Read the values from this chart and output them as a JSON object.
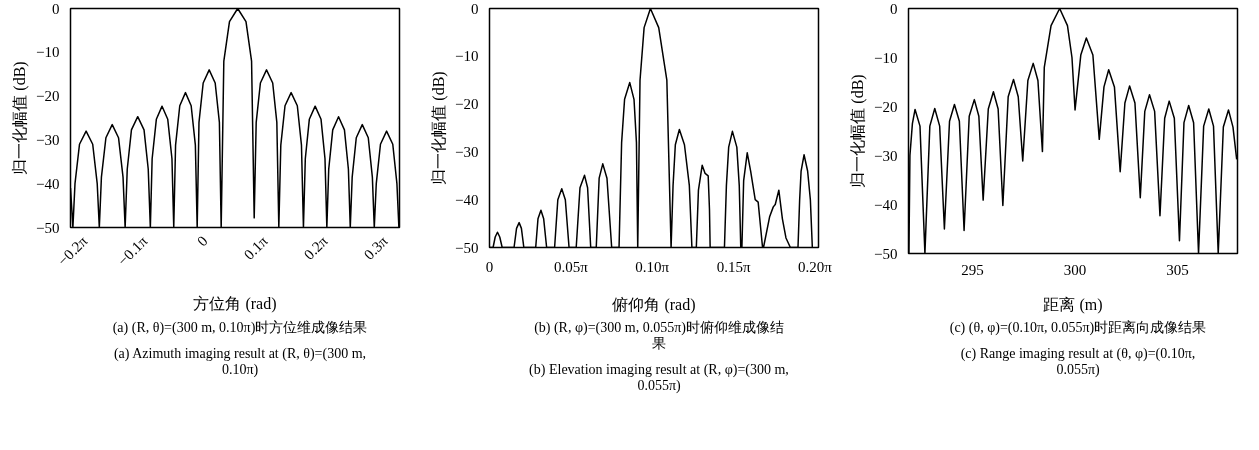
{
  "chart_data": [
    {
      "type": "line",
      "xlabel": "方位角 (rad)",
      "ylabel": "归一化幅值 (dB)",
      "color": "#000000",
      "x": [
        -0.7037,
        -0.6912,
        -0.6802,
        -0.6566,
        -0.622,
        -0.5875,
        -0.5639,
        -0.5529,
        -0.5419,
        -0.5184,
        -0.4854,
        -0.4524,
        -0.4288,
        -0.4178,
        -0.4068,
        -0.3848,
        -0.3519,
        -0.3189,
        -0.2969,
        -0.2859,
        -0.2765,
        -0.2545,
        -0.2246,
        -0.1948,
        -0.1728,
        -0.1634,
        -0.1539,
        -0.1319,
        -0.1021,
        -0.0723,
        -0.0503,
        -0.0408,
        -0.0314,
        -0.0094,
        0.022,
        0.0534,
        0.0754,
        0.0848,
        0.0986,
        0.1282,
        0.1712,
        0.2146,
        0.2438,
        0.2576,
        0.268,
        0.29,
        0.322,
        0.3544,
        0.376,
        0.3864,
        0.3968,
        0.4188,
        0.4508,
        0.4832,
        0.5049,
        0.5152,
        0.525,
        0.546,
        0.5765,
        0.6073,
        0.628,
        0.6377,
        0.6475,
        0.6685,
        0.699,
        0.7298,
        0.7505,
        0.7603,
        0.7703,
        0.7917,
        0.8231,
        0.8545,
        0.8759,
        0.8859,
        0.8963,
        0.9183,
        0.9503,
        0.9827,
        1.0044,
        1.0147
      ],
      "values": [
        -41,
        -50,
        -40,
        -31,
        -28,
        -31,
        -40,
        -50,
        -38.5,
        -29.5,
        -26.5,
        -29.5,
        -38.5,
        -50,
        -36.7,
        -27.7,
        -24.7,
        -27.7,
        -36.7,
        -50,
        -34.3,
        -25.3,
        -22.3,
        -25.3,
        -34.3,
        -50,
        -31.2,
        -22.2,
        -19.2,
        -22.2,
        -31.2,
        -50,
        -26,
        -17,
        -14,
        -17,
        -26,
        -50,
        -12,
        -3,
        0,
        -3,
        -12,
        -47.8,
        -26,
        -17,
        -14,
        -17,
        -26,
        -50,
        -31.2,
        -22.2,
        -19.2,
        -22.2,
        -31.2,
        -50,
        -34.3,
        -25.3,
        -22.3,
        -25.3,
        -34.3,
        -50,
        -36.7,
        -27.7,
        -24.7,
        -27.7,
        -36.7,
        -50,
        -38.5,
        -29.5,
        -26.5,
        -29.5,
        -38.5,
        -50,
        -40,
        -31,
        -28,
        -31,
        -40,
        -50
      ],
      "xlim": [
        -0.7037,
        1.0179
      ],
      "xticks": [
        {
          "value": -0.6283,
          "label": "−0.2π"
        },
        {
          "value": -0.3142,
          "label": "−0.1π"
        },
        0,
        {
          "value": 0.3142,
          "label": "0.1π"
        },
        {
          "value": 0.6283,
          "label": "0.2π"
        },
        {
          "value": 0.9425,
          "label": "0.3π"
        }
      ],
      "ylim": [
        -50,
        0
      ],
      "yticks": [
        0,
        {
          "value": -10,
          "label": "−10"
        },
        {
          "value": -20,
          "label": "−20"
        },
        {
          "value": -30,
          "label": "−30"
        },
        {
          "value": -40,
          "label": "−40"
        },
        {
          "value": -50,
          "label": "−50"
        }
      ],
      "annotations": [
        "(a) (R, θ)=(300 m, 0.10π)时方位维成像结果",
        "(a) Azimuth imaging result at (R, θ)=(300 m, 0.10π)"
      ]
    },
    {
      "type": "line",
      "xlabel": "俯仰角 (rad)",
      "ylabel": "归一化幅值 (dB)",
      "color": "#000000",
      "x": [
        0,
        0.0069,
        0.011,
        0.0154,
        0.0198,
        0.0245,
        0.0474,
        0.0522,
        0.0572,
        0.0616,
        0.0663,
        0.0892,
        0.0936,
        0.0993,
        0.1046,
        0.1103,
        0.1257,
        0.1319,
        0.1395,
        0.1464,
        0.1536,
        0.1674,
        0.1747,
        0.1835,
        0.1894,
        0.1954,
        0.2061,
        0.2117,
        0.2187,
        0.2268,
        0.2359,
        0.2501,
        0.2551,
        0.2608,
        0.2708,
        0.279,
        0.2837,
        0.2862,
        0.2906,
        0.2985,
        0.3107,
        0.3267,
        0.3424,
        0.3506,
        0.3544,
        0.3588,
        0.3666,
        0.3764,
        0.3858,
        0.3908,
        0.3993,
        0.4034,
        0.4106,
        0.4163,
        0.4222,
        0.4247,
        0.426,
        0.4536,
        0.4574,
        0.4618,
        0.469,
        0.4775,
        0.4822,
        0.4851,
        0.4873,
        0.4907,
        0.4976,
        0.5042,
        0.513,
        0.5187,
        0.5272,
        0.529,
        0.541,
        0.5479,
        0.5517,
        0.5586,
        0.5655,
        0.5724,
        0.5809,
        0.5956,
        0.5988,
        0.6016,
        0.6073,
        0.6142,
        0.6195,
        0.6233
      ],
      "values": [
        -50,
        -50,
        -47.8,
        -46.8,
        -47.8,
        -50,
        -50,
        -46,
        -44.8,
        -46,
        -50,
        -50,
        -44,
        -42.2,
        -44,
        -50,
        -50,
        -40,
        -37.7,
        -40,
        -50,
        -50,
        -37.5,
        -34.9,
        -37.5,
        -50,
        -50,
        -35.5,
        -32.5,
        -35.5,
        -50,
        -50,
        -28,
        -19,
        -15.5,
        -19,
        -28,
        -50,
        -15,
        -4,
        0,
        -4,
        -15,
        -50,
        -37,
        -28.5,
        -25.3,
        -28.5,
        -37,
        -50,
        -50,
        -38,
        -32.8,
        -34.5,
        -35,
        -42,
        -50,
        -50,
        -37,
        -29,
        -25.7,
        -29,
        -37,
        -50,
        -50,
        -36,
        -30.2,
        -34,
        -40,
        -40.5,
        -50,
        -50,
        -43.5,
        -41.5,
        -41,
        -38,
        -44,
        -48,
        -50,
        -50,
        -40,
        -34,
        -30.6,
        -34,
        -40,
        -50
      ],
      "xlim": [
        0,
        0.6352
      ],
      "xticks": [
        0,
        {
          "value": 0.1571,
          "label": "0.05π"
        },
        {
          "value": 0.3142,
          "label": "0.10π"
        },
        {
          "value": 0.4712,
          "label": "0.15π"
        },
        {
          "value": 0.6283,
          "label": "0.20π"
        }
      ],
      "ylim": [
        -50,
        0
      ],
      "yticks": [
        0,
        {
          "value": -10,
          "label": "−10"
        },
        {
          "value": -20,
          "label": "−20"
        },
        {
          "value": -30,
          "label": "−30"
        },
        {
          "value": -40,
          "label": "−40"
        },
        {
          "value": -50,
          "label": "−50"
        }
      ],
      "annotations": [
        "(b) (R, φ)=(300 m, 0.055π)时俯仰维成像结果",
        "(b) Elevation imaging result at (R, φ)=(300 m, 0.055π)"
      ]
    },
    {
      "type": "line",
      "xlabel": "距离 (m)",
      "ylabel": "归一化幅值 (dB)",
      "color": "#000000",
      "x": [
        291.9,
        291.95,
        292.07,
        292.2,
        292.44,
        292.68,
        292.92,
        293.16,
        293.4,
        293.63,
        293.88,
        294.12,
        294.36,
        294.59,
        294.84,
        295.09,
        295.31,
        295.52,
        295.77,
        296.02,
        296.25,
        296.48,
        296.74,
        297.0,
        297.23,
        297.45,
        297.7,
        297.96,
        298.19,
        298.41,
        298.5,
        298.83,
        299.25,
        299.63,
        299.85,
        300.0,
        300.28,
        300.55,
        300.87,
        301.18,
        301.41,
        301.64,
        301.92,
        302.2,
        302.43,
        302.66,
        302.92,
        303.18,
        303.4,
        303.63,
        303.88,
        304.14,
        304.37,
        304.59,
        304.84,
        305.09,
        305.31,
        305.54,
        305.78,
        306.02,
        306.27,
        306.52,
        306.75,
        306.98,
        307.23,
        307.48,
        307.7,
        307.88
      ],
      "values": [
        -50,
        -30,
        -23.5,
        -20.6,
        -24,
        -50,
        -24,
        -20.4,
        -24,
        -45,
        -23,
        -19.6,
        -23,
        -45.3,
        -22,
        -18.6,
        -22,
        -39.1,
        -20.5,
        -17,
        -20.5,
        -40.2,
        -18,
        -14.5,
        -18,
        -31.1,
        -14.7,
        -11.2,
        -14.7,
        -29.2,
        -12,
        -3.5,
        0,
        -3.5,
        -10,
        -20.7,
        -9.5,
        -6,
        -9.5,
        -26.7,
        -16,
        -12.5,
        -16,
        -33.3,
        -19.3,
        -15.8,
        -19.3,
        -38.6,
        -21,
        -17.6,
        -21,
        -42.3,
        -22.4,
        -18.9,
        -22.4,
        -47.4,
        -23.3,
        -19.8,
        -23.3,
        -50,
        -24,
        -20.5,
        -24,
        -50,
        -24.2,
        -20.7,
        -24.2,
        -30.8
      ],
      "xlim": [
        291.88,
        307.92
      ],
      "xticks": [
        295,
        300,
        305
      ],
      "ylim": [
        -50,
        0
      ],
      "yticks": [
        0,
        {
          "value": -10,
          "label": "−10"
        },
        {
          "value": -20,
          "label": "−20"
        },
        {
          "value": -30,
          "label": "−30"
        },
        {
          "value": -40,
          "label": "−40"
        },
        {
          "value": -50,
          "label": "−50"
        }
      ],
      "annotations": [
        "(c) (θ, φ)=(0.10π, 0.055π)时距离向成像结果",
        "(c) Range imaging result at (θ, φ)=(0.10π, 0.055π)"
      ]
    }
  ]
}
